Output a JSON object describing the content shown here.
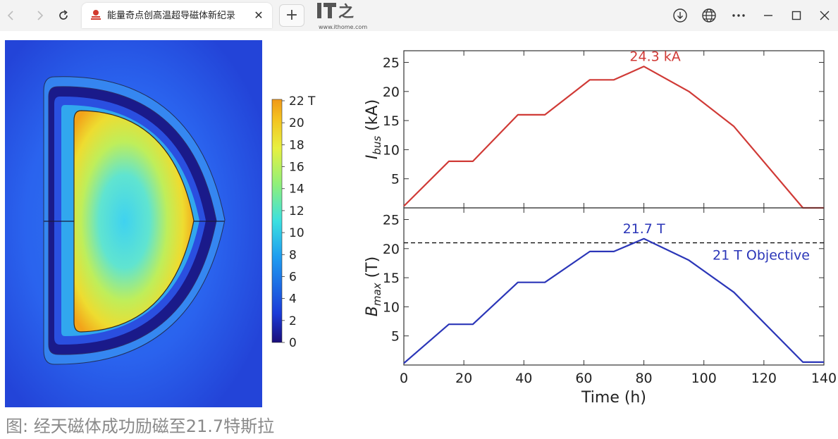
{
  "browser": {
    "tab_title": "能量奇点创高温超导磁体新纪录",
    "tab_close": "✕",
    "new_tab": "+",
    "logo_text": "IT之家",
    "logo_url": "www.ithome.com",
    "icons": [
      "back-icon",
      "forward-icon",
      "refresh-icon",
      "download-icon",
      "globe-icon",
      "more-icon",
      "minimize-icon",
      "maximize-icon",
      "close-icon"
    ]
  },
  "colorbar": {
    "ticks": [
      "22 T",
      "20",
      "18",
      "16",
      "14",
      "12",
      "10",
      "8",
      "6",
      "4",
      "2",
      "0"
    ],
    "colors": [
      "#1a0d7a",
      "#1b3bd8",
      "#1e9cf0",
      "#3ce0e0",
      "#8ff07a",
      "#e8f040",
      "#f4c220",
      "#f09818"
    ]
  },
  "caption": "图: 经天磁体成功励磁至21.7特斯拉",
  "chart_data": [
    {
      "type": "line",
      "ylabel_main": "I",
      "ylabel_sub": "bus",
      "ylabel_unit": " (kA)",
      "xlim": [
        0,
        140
      ],
      "ylim": [
        0,
        27
      ],
      "yticks": [
        "25",
        "20",
        "15",
        "10",
        "5"
      ],
      "ytick_values": [
        25,
        20,
        15,
        10,
        5
      ],
      "annotation": "24.3 kA",
      "color": "#d03a36",
      "series": [
        {
          "x": [
            0,
            15,
            23,
            38,
            47,
            62,
            70,
            80,
            95,
            110,
            133,
            140
          ],
          "values": [
            0.3,
            8,
            8,
            16,
            16,
            22,
            22,
            24.3,
            20,
            14,
            0,
            0
          ]
        }
      ]
    },
    {
      "type": "line",
      "ylabel_main": "B",
      "ylabel_sub": "max",
      "ylabel_unit": " (T)",
      "xlabel": "Time (h)",
      "xlim": [
        0,
        140
      ],
      "ylim": [
        0,
        27
      ],
      "xticks": [
        "0",
        "20",
        "40",
        "60",
        "80",
        "100",
        "120",
        "140"
      ],
      "xtick_values": [
        0,
        20,
        40,
        60,
        80,
        100,
        120,
        140
      ],
      "yticks": [
        "25",
        "20",
        "15",
        "10",
        "5"
      ],
      "ytick_values": [
        25,
        20,
        15,
        10,
        5
      ],
      "annotation": "21.7 T",
      "objective_value": 21,
      "objective_label": "21 T Objective",
      "color": "#2b36b8",
      "series": [
        {
          "x": [
            0,
            15,
            23,
            38,
            47,
            62,
            70,
            80,
            95,
            110,
            133,
            140
          ],
          "values": [
            0.3,
            7,
            7,
            14.2,
            14.2,
            19.5,
            19.5,
            21.7,
            18,
            12.5,
            0.5,
            0.5
          ]
        }
      ]
    }
  ]
}
